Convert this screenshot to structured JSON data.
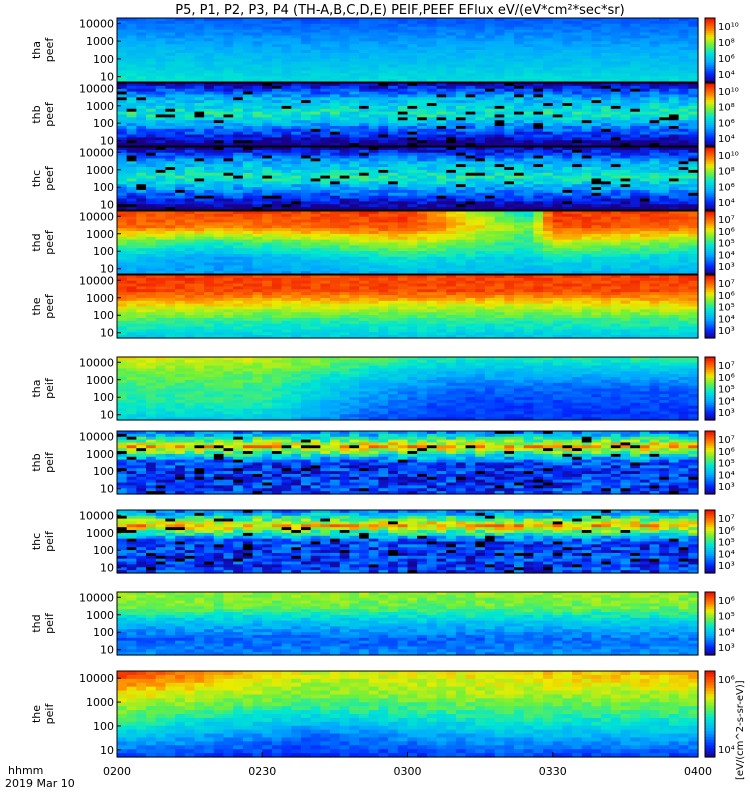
{
  "chart_data": {
    "type": "heatmap",
    "title": "P5, P1, P2, P3, P4 (TH-A,B,C,D,E) PEIF,PEEF EFlux eV/(eV*cm²*sec*sr)",
    "x_axis": {
      "label_line1": "hhmm",
      "label_line2": "2019 Mar 10",
      "ticks": [
        "0200",
        "0230",
        "0300",
        "0330",
        "0400"
      ],
      "range_minutes": [
        0,
        120
      ]
    },
    "y_axis": {
      "scale": "log",
      "ylim": [
        5,
        20000
      ],
      "ticks": [
        "10",
        "100",
        "1000",
        "10000"
      ]
    },
    "colorbar_label": "[eV/(cm^2-s-sr-eV)]",
    "colormap": "rainbow (blue→red, black = no counts)",
    "panels": [
      {
        "label_line1": "tha",
        "label_line2": "peef",
        "colorbar_ticks": [
          "10¹⁰",
          "10⁸",
          "10⁶",
          "10⁴"
        ],
        "cb_range": [
          3,
          10.5
        ],
        "profile": [
          {
            "x": 0,
            "y": [
              6.5,
              6,
              5.6,
              5,
              4.5
            ]
          },
          {
            "x": 40,
            "y": [
              6.2,
              5.7,
              5.3,
              4.8,
              4.3
            ]
          },
          {
            "x": 80,
            "y": [
              6.3,
              5.8,
              5.4,
              4.9,
              4.4
            ]
          },
          {
            "x": 120,
            "y": [
              6.2,
              5.7,
              5.3,
              4.8,
              4.3
            ]
          }
        ]
      },
      {
        "label_line1": "thb",
        "label_line2": "peef",
        "colorbar_ticks": [
          "10¹⁰",
          "10⁸",
          "10⁶",
          "10⁴"
        ],
        "cb_range": [
          3,
          10.5
        ],
        "profile": [
          {
            "x": 0,
            "y": [
              2.5,
              4.5,
              6.5,
              5.5,
              3
            ]
          },
          {
            "x": 120,
            "y": [
              2.5,
              4.5,
              6.5,
              5.5,
              3
            ]
          }
        ]
      },
      {
        "label_line1": "thc",
        "label_line2": "peef",
        "colorbar_ticks": [
          "10¹⁰",
          "10⁸",
          "10⁶",
          "10⁴"
        ],
        "cb_range": [
          3,
          10.5
        ],
        "profile": [
          {
            "x": 0,
            "y": [
              2.5,
              4.5,
              6.5,
              5.5,
              3
            ]
          },
          {
            "x": 120,
            "y": [
              2.5,
              4.5,
              6.5,
              5.5,
              3
            ]
          }
        ]
      },
      {
        "label_line1": "thd",
        "label_line2": "peef",
        "colorbar_ticks": [
          "10⁷",
          "10⁶",
          "10⁵",
          "10⁴",
          "10³"
        ],
        "cb_range": [
          2.5,
          7.7
        ],
        "profile": [
          {
            "x": 0,
            "y": [
              4,
              4.5,
              5.5,
              7,
              7.2
            ]
          },
          {
            "x": 20,
            "y": [
              4,
              4,
              5,
              6.8,
              7.3
            ]
          },
          {
            "x": 40,
            "y": [
              4,
              4.4,
              5.5,
              7,
              7.3
            ]
          },
          {
            "x": 60,
            "y": [
              4.3,
              4.8,
              6,
              7.2,
              7.4
            ]
          },
          {
            "x": 85,
            "y": [
              4.2,
              4.5,
              5,
              5.5,
              4.5
            ]
          },
          {
            "x": 90,
            "y": [
              4.2,
              4.8,
              6,
              7.2,
              7.4
            ]
          },
          {
            "x": 120,
            "y": [
              4.2,
              4.5,
              5.5,
              7,
              7.2
            ]
          }
        ]
      },
      {
        "label_line1": "the",
        "label_line2": "peef",
        "colorbar_ticks": [
          "10⁷",
          "10⁶",
          "10⁵",
          "10⁴",
          "10³"
        ],
        "cb_range": [
          2.5,
          7.7
        ],
        "profile": [
          {
            "x": 0,
            "y": [
              4.5,
              5.2,
              6.2,
              7.3,
              7.4
            ]
          },
          {
            "x": 40,
            "y": [
              4.5,
              5,
              6,
              7.2,
              7.2
            ]
          },
          {
            "x": 80,
            "y": [
              4.4,
              5,
              5.9,
              7.2,
              7.3
            ]
          },
          {
            "x": 120,
            "y": [
              4.5,
              5.1,
              6.1,
              7.2,
              7.3
            ]
          }
        ]
      },
      {
        "label_line1": "tha",
        "label_line2": "peif",
        "colorbar_ticks": [
          "10⁷",
          "10⁶",
          "10⁵",
          "10⁴",
          "10³"
        ],
        "cb_range": [
          2.5,
          7.7
        ],
        "profile": [
          {
            "x": 0,
            "y": [
              4.5,
              5,
              5.2,
              5.5,
              6.2
            ]
          },
          {
            "x": 30,
            "y": [
              4.5,
              5,
              5.2,
              5.5,
              6
            ]
          },
          {
            "x": 50,
            "y": [
              3.5,
              3.8,
              4.2,
              4.8,
              5.5
            ]
          },
          {
            "x": 70,
            "y": [
              3.2,
              3.3,
              3.6,
              4.2,
              5
            ]
          },
          {
            "x": 120,
            "y": [
              3.2,
              3.3,
              3.5,
              4.3,
              5.2
            ]
          }
        ]
      },
      {
        "label_line1": "thb",
        "label_line2": "peif",
        "colorbar_ticks": [
          "10⁷",
          "10⁶",
          "10⁵",
          "10⁴",
          "10³"
        ],
        "cb_range": [
          2.5,
          7.7
        ],
        "profile": [
          {
            "x": 0,
            "y": [
              3.3,
              3.2,
              3.3,
              6.5,
              3.5
            ]
          },
          {
            "x": 120,
            "y": [
              3.3,
              3.2,
              3.3,
              6.5,
              3.5
            ]
          }
        ]
      },
      {
        "label_line1": "thc",
        "label_line2": "peif",
        "colorbar_ticks": [
          "10⁷",
          "10⁶",
          "10⁵",
          "10⁴",
          "10³"
        ],
        "cb_range": [
          2.5,
          7.7
        ],
        "profile": [
          {
            "x": 0,
            "y": [
              3.3,
              3.2,
              3.3,
              6.5,
              3.5
            ]
          },
          {
            "x": 120,
            "y": [
              3.3,
              3.2,
              3.3,
              6.5,
              3.5
            ]
          }
        ]
      },
      {
        "label_line1": "thd",
        "label_line2": "peif",
        "colorbar_ticks": [
          "10⁶",
          "10⁵",
          "10⁴",
          "10³"
        ],
        "cb_range": [
          2.5,
          6.5
        ],
        "profile": [
          {
            "x": 0,
            "y": [
              3.5,
              3.3,
              3.8,
              4.8,
              5
            ]
          },
          {
            "x": 60,
            "y": [
              3.5,
              3.3,
              3.9,
              4.7,
              5
            ]
          },
          {
            "x": 120,
            "y": [
              3.6,
              3.4,
              4,
              4.8,
              5
            ]
          }
        ]
      },
      {
        "label_line1": "the",
        "label_line2": "peif",
        "colorbar_ticks": [
          "10⁶",
          "10⁴"
        ],
        "cb_range": [
          2.5,
          7
        ],
        "profile": [
          {
            "x": 0,
            "y": [
              3.2,
              4.2,
              5,
              5.8,
              6.8
            ]
          },
          {
            "x": 40,
            "y": [
              3,
              3.5,
              4.5,
              5.2,
              5.5
            ]
          },
          {
            "x": 80,
            "y": [
              3.2,
              4,
              4.8,
              5.4,
              5.8
            ]
          },
          {
            "x": 120,
            "y": [
              3.1,
              4,
              4.8,
              5.4,
              6
            ]
          }
        ]
      }
    ]
  }
}
